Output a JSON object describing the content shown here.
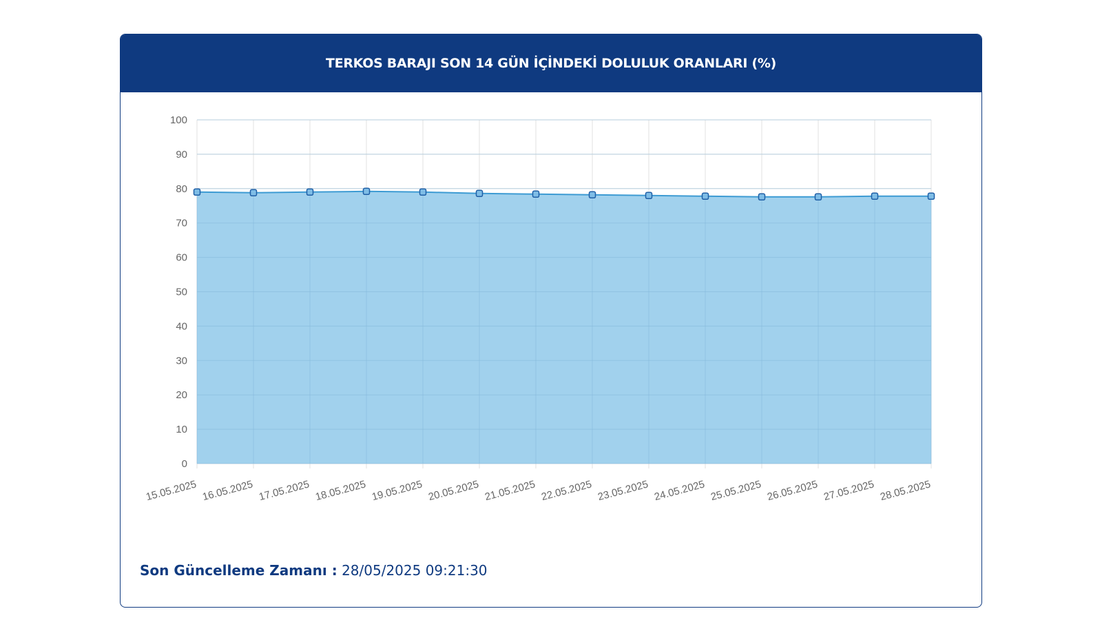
{
  "card": {
    "title": "TERKOS BARAJI SON 14 GÜN İÇİNDEKİ DOLULUK ORANLARI (%)"
  },
  "footer": {
    "label": "Son Güncelleme Zamanı :",
    "value": "28/05/2025 09:21:30"
  },
  "colors": {
    "header_bg": "#0f3a80",
    "area_fill": "#9ccfec",
    "line": "#3d9bd3",
    "marker_fill": "#7fbde6",
    "marker_stroke": "#1f5fa6"
  },
  "chart_data": {
    "type": "area",
    "title": "TERKOS BARAJI SON 14 GÜN İÇİNDEKİ DOLULUK ORANLARI (%)",
    "xlabel": "",
    "ylabel": "",
    "ylim": [
      0,
      100
    ],
    "yticks": [
      0,
      10,
      20,
      30,
      40,
      50,
      60,
      70,
      80,
      90,
      100
    ],
    "grid": true,
    "categories": [
      "15.05.2025",
      "16.05.2025",
      "17.05.2025",
      "18.05.2025",
      "19.05.2025",
      "20.05.2025",
      "21.05.2025",
      "22.05.2025",
      "23.05.2025",
      "24.05.2025",
      "25.05.2025",
      "26.05.2025",
      "27.05.2025",
      "28.05.2025"
    ],
    "series": [
      {
        "values": [
          79.0,
          78.8,
          79.0,
          79.2,
          79.0,
          78.6,
          78.4,
          78.2,
          78.0,
          77.8,
          77.6,
          77.6,
          77.8,
          77.8
        ]
      }
    ]
  }
}
